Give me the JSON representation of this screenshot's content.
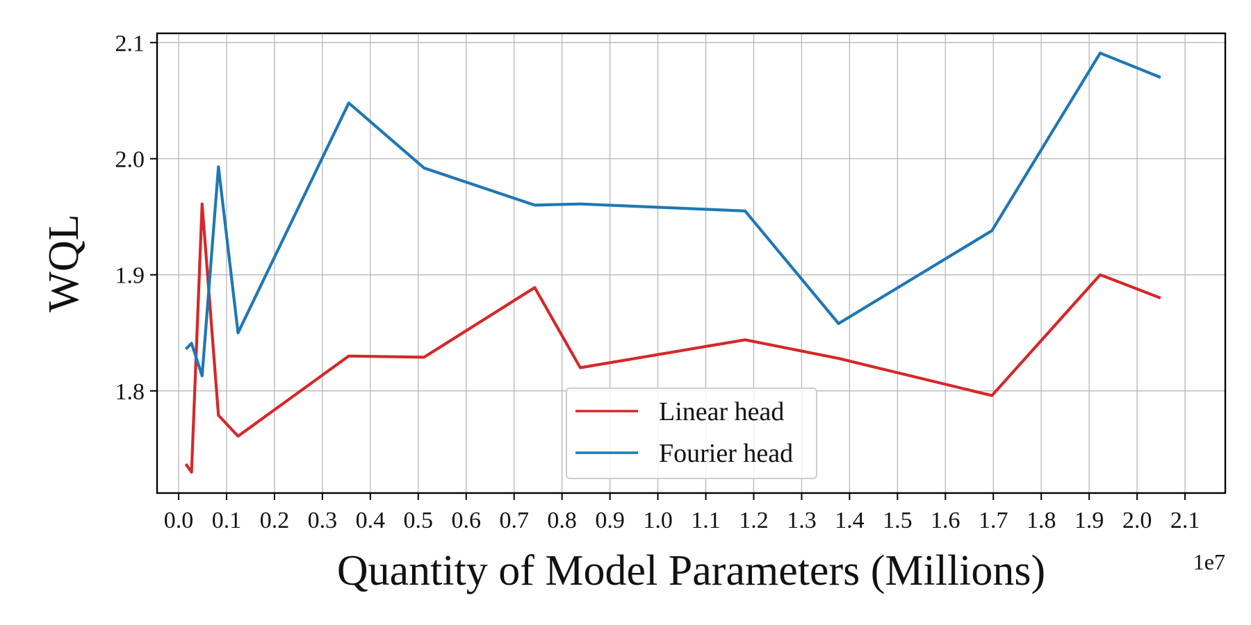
{
  "chart_data": {
    "type": "line",
    "title": "",
    "xlabel": "Quantity of Model Parameters (Millions)",
    "ylabel": "WQL",
    "x_offset_label": "1e7",
    "x_scale": 10000000,
    "xlim": [
      -0.045,
      2.184
    ],
    "ylim": [
      1.712,
      2.108
    ],
    "x_ticks": [
      0.0,
      0.1,
      0.2,
      0.3,
      0.4,
      0.5,
      0.6,
      0.7,
      0.8,
      0.9,
      1.0,
      1.1,
      1.2,
      1.3,
      1.4,
      1.5,
      1.6,
      1.7,
      1.8,
      1.9,
      2.0,
      2.1
    ],
    "x_tick_labels": [
      "0.0",
      "0.1",
      "0.2",
      "0.3",
      "0.4",
      "0.5",
      "0.6",
      "0.7",
      "0.8",
      "0.9",
      "1.0",
      "1.1",
      "1.2",
      "1.3",
      "1.4",
      "1.5",
      "1.6",
      "1.7",
      "1.8",
      "1.9",
      "2.0",
      "2.1"
    ],
    "y_ticks": [
      1.8,
      1.9,
      2.0,
      2.1
    ],
    "y_tick_labels": [
      "1.8",
      "1.9",
      "2.0",
      "2.1"
    ],
    "grid": true,
    "legend_position": "bottom-center",
    "series": [
      {
        "name": "Linear head",
        "color": "#d62728",
        "x": [
          0.015,
          0.027,
          0.049,
          0.083,
          0.124,
          0.355,
          0.512,
          0.743,
          0.838,
          1.182,
          1.377,
          1.697,
          1.923,
          2.049
        ],
        "y": [
          1.737,
          1.73,
          1.961,
          1.779,
          1.761,
          1.83,
          1.829,
          1.889,
          1.82,
          1.844,
          1.828,
          1.796,
          1.9,
          1.88
        ]
      },
      {
        "name": "Fourier head",
        "color": "#1f77b4",
        "x": [
          0.015,
          0.027,
          0.049,
          0.083,
          0.124,
          0.355,
          0.512,
          0.743,
          0.838,
          1.182,
          1.377,
          1.697,
          1.923,
          2.049
        ],
        "y": [
          1.836,
          1.841,
          1.813,
          1.993,
          1.85,
          2.048,
          1.992,
          1.96,
          1.961,
          1.955,
          1.858,
          1.938,
          2.091,
          2.07
        ]
      }
    ]
  }
}
